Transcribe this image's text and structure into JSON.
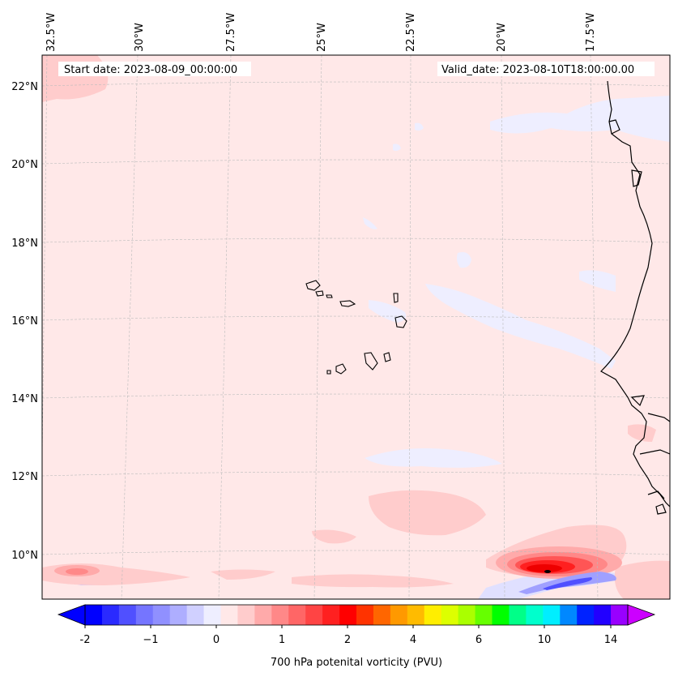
{
  "map": {
    "start_label": "Start date: 2023-08-09_00:00:00",
    "valid_label": "Valid_date: 2023-08-10T18:00:00.00",
    "lon_labels": [
      "32.5°W",
      "30°W",
      "27.5°W",
      "25°W",
      "22.5°W",
      "20°W",
      "17.5°W"
    ],
    "lat_labels": [
      "22°N",
      "20°N",
      "18°N",
      "16°N",
      "14°N",
      "12°N",
      "10°N"
    ],
    "field_name": "700 hPa potential vorticity",
    "colors": {
      "background": "#ffe8e8",
      "light_blue": "#eeeeff",
      "light_red": "#ffcccc",
      "grid": "#bbbbbb",
      "coast": "#000000"
    }
  },
  "colorbar": {
    "label": "700 hPa potenital vorticity (PVU)",
    "ticks": [
      "-2",
      "−1",
      "0",
      "1",
      "2",
      "4",
      "6",
      "10",
      "14"
    ],
    "colors": [
      "#0000ff",
      "#2a2aff",
      "#5050ff",
      "#7575ff",
      "#9090ff",
      "#aeaeff",
      "#d0d0ff",
      "#eeeeff",
      "#ffe8e8",
      "#ffcccc",
      "#ffaaaa",
      "#ff8888",
      "#ff6666",
      "#ff4444",
      "#ff2020",
      "#ff0000",
      "#ff3300",
      "#ff6600",
      "#ff9900",
      "#ffbb00",
      "#ffee00",
      "#ddff00",
      "#aaff00",
      "#66ff00",
      "#00ff00",
      "#00ff88",
      "#00ffcc",
      "#00eeff",
      "#0088ff",
      "#0022ff",
      "#2200ff",
      "#9900ff"
    ],
    "under_color": "#0000ff",
    "over_color": "#cc00ff"
  }
}
